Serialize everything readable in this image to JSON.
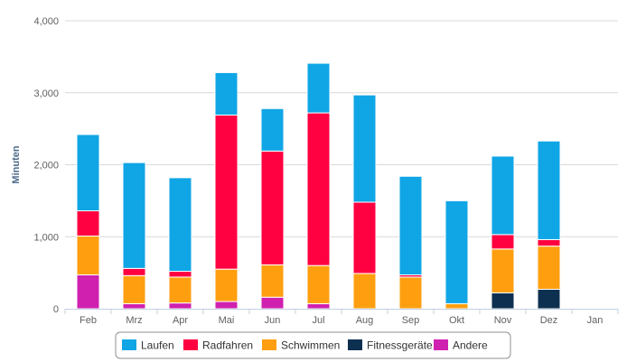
{
  "chart_data": {
    "type": "bar",
    "stacked": true,
    "title": "",
    "xlabel": "",
    "ylabel": "Minuten",
    "ylim": [
      0,
      4000
    ],
    "yticks": [
      0,
      1000,
      2000,
      3000,
      4000
    ],
    "ytick_labels": [
      "0",
      "1,000",
      "2,000",
      "3,000",
      "4,000"
    ],
    "grid": true,
    "legend_position": "bottom",
    "categories": [
      "Feb",
      "Mrz",
      "Apr",
      "Mai",
      "Jun",
      "Jul",
      "Aug",
      "Sep",
      "Okt",
      "Nov",
      "Dez",
      "Jan"
    ],
    "series": [
      {
        "name": "Andere",
        "color": "#d020b0",
        "values": [
          470,
          70,
          80,
          100,
          160,
          70,
          0,
          0,
          0,
          0,
          0,
          0
        ]
      },
      {
        "name": "Fitnessgeräte",
        "color": "#0e3050",
        "values": [
          0,
          0,
          0,
          0,
          0,
          0,
          0,
          0,
          0,
          220,
          270,
          0
        ]
      },
      {
        "name": "Schwimmen",
        "color": "#ff9f10",
        "values": [
          540,
          390,
          360,
          450,
          450,
          530,
          490,
          440,
          70,
          610,
          600,
          0
        ]
      },
      {
        "name": "Radfahren",
        "color": "#ff0040",
        "values": [
          350,
          100,
          80,
          2140,
          1580,
          2120,
          990,
          30,
          0,
          200,
          90,
          0
        ]
      },
      {
        "name": "Laufen",
        "color": "#10a6e6",
        "values": [
          1060,
          1470,
          1300,
          590,
          590,
          690,
          1490,
          1370,
          1430,
          1090,
          1370,
          0
        ]
      }
    ],
    "legend_order": [
      "Laufen",
      "Radfahren",
      "Schwimmen",
      "Fitnessgeräte",
      "Andere"
    ]
  }
}
